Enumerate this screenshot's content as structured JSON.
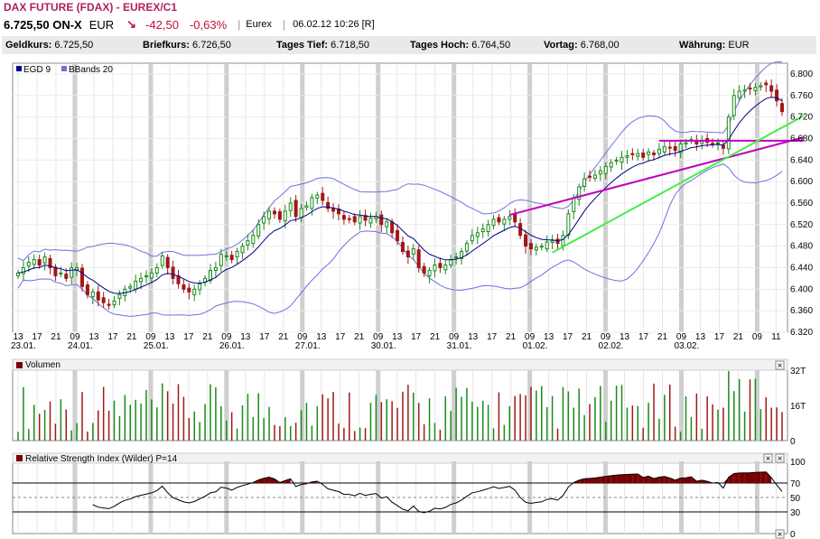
{
  "header": {
    "title": "DAX FUTURE (FDAX) - EUREX/C1",
    "price": "6.725,50 ON-X",
    "currency": "EUR",
    "change": "-42,50",
    "change_pct": "-0,63%",
    "exchange": "Eurex",
    "datetime": "06.02.12 10:26 [R]"
  },
  "quotes": [
    {
      "label": "Geldkurs:",
      "value": "6.725,50"
    },
    {
      "label": "Briefkurs:",
      "value": "6.726,50"
    },
    {
      "label": "Tages Tief:",
      "value": "6.718,50"
    },
    {
      "label": "Tages Hoch:",
      "value": "6.764,50"
    },
    {
      "label": "Vortag:",
      "value": "6.768,00"
    },
    {
      "label": "Währung:",
      "value": "EUR"
    }
  ],
  "colors": {
    "up": "#1a8a1a",
    "down": "#a01818",
    "ema": "#00008b",
    "bbands": "#7070e0",
    "trend_magenta": "#c000c0",
    "trend_green": "#44ee44",
    "rsi_fill": "#7a0000"
  },
  "chart_data": [
    {
      "type": "candlestick",
      "title": "",
      "legend": [
        "EGD 9",
        "BBands 20"
      ],
      "ylim": [
        6320,
        6820
      ],
      "y_ticks": [
        "6.800",
        "6.760",
        "6.720",
        "6.680",
        "6.640",
        "6.600",
        "6.560",
        "6.520",
        "6.480",
        "6.440",
        "6.400",
        "6.360",
        "6.320"
      ],
      "hour_ticks": [
        "13",
        "17",
        "21",
        "09",
        "13",
        "17",
        "21",
        "09",
        "13",
        "17",
        "21",
        "09",
        "13",
        "17",
        "21",
        "09",
        "13",
        "17",
        "21",
        "09",
        "13",
        "17",
        "21",
        "09",
        "13",
        "17",
        "21",
        "09",
        "13",
        "17",
        "21",
        "09",
        "13",
        "17",
        "21",
        "09",
        "13",
        "17",
        "21",
        "09",
        "11"
      ],
      "date_labels": [
        "23.01.",
        "24.01.",
        "25.01.",
        "26.01.",
        "27.01.",
        "30.01.",
        "31.01.",
        "01.02.",
        "02.02.",
        "03.02."
      ],
      "close": [
        6430,
        6440,
        6450,
        6455,
        6445,
        6460,
        6440,
        6425,
        6430,
        6420,
        6440,
        6440,
        6405,
        6390,
        6395,
        6380,
        6375,
        6370,
        6378,
        6390,
        6400,
        6405,
        6415,
        6420,
        6425,
        6430,
        6440,
        6462,
        6440,
        6420,
        6410,
        6400,
        6395,
        6400,
        6410,
        6420,
        6435,
        6440,
        6465,
        6462,
        6455,
        6470,
        6480,
        6490,
        6500,
        6520,
        6535,
        6545,
        6540,
        6530,
        6545,
        6560,
        6535,
        6550,
        6555,
        6570,
        6575,
        6565,
        6550,
        6545,
        6540,
        6530,
        6530,
        6525,
        6535,
        6528,
        6532,
        6535,
        6520,
        6525,
        6505,
        6490,
        6470,
        6460,
        6475,
        6440,
        6430,
        6435,
        6445,
        6440,
        6445,
        6455,
        6460,
        6470,
        6485,
        6500,
        6505,
        6512,
        6520,
        6530,
        6525,
        6530,
        6535,
        6525,
        6500,
        6480,
        6475,
        6478,
        6480,
        6488,
        6490,
        6485,
        6500,
        6540,
        6570,
        6590,
        6605,
        6608,
        6612,
        6620,
        6628,
        6635,
        6640,
        6645,
        6648,
        6650,
        6652,
        6645,
        6655,
        6650,
        6660,
        6665,
        6662,
        6658,
        6670,
        6672,
        6678,
        6670,
        6675,
        6673,
        6670,
        6672,
        6662,
        6720,
        6760,
        6768,
        6770,
        6772,
        6775,
        6778,
        6780,
        6768,
        6750,
        6730
      ],
      "volume_max": 32000,
      "volume_ticks": [
        "32T",
        "16T",
        "0"
      ],
      "rsi_ticks": [
        "100",
        "70",
        "50",
        "30",
        "0"
      ]
    }
  ],
  "panels": {
    "volume_title": "Volumen",
    "rsi_title": "Relative Strength Index (Wilder) P=14"
  }
}
